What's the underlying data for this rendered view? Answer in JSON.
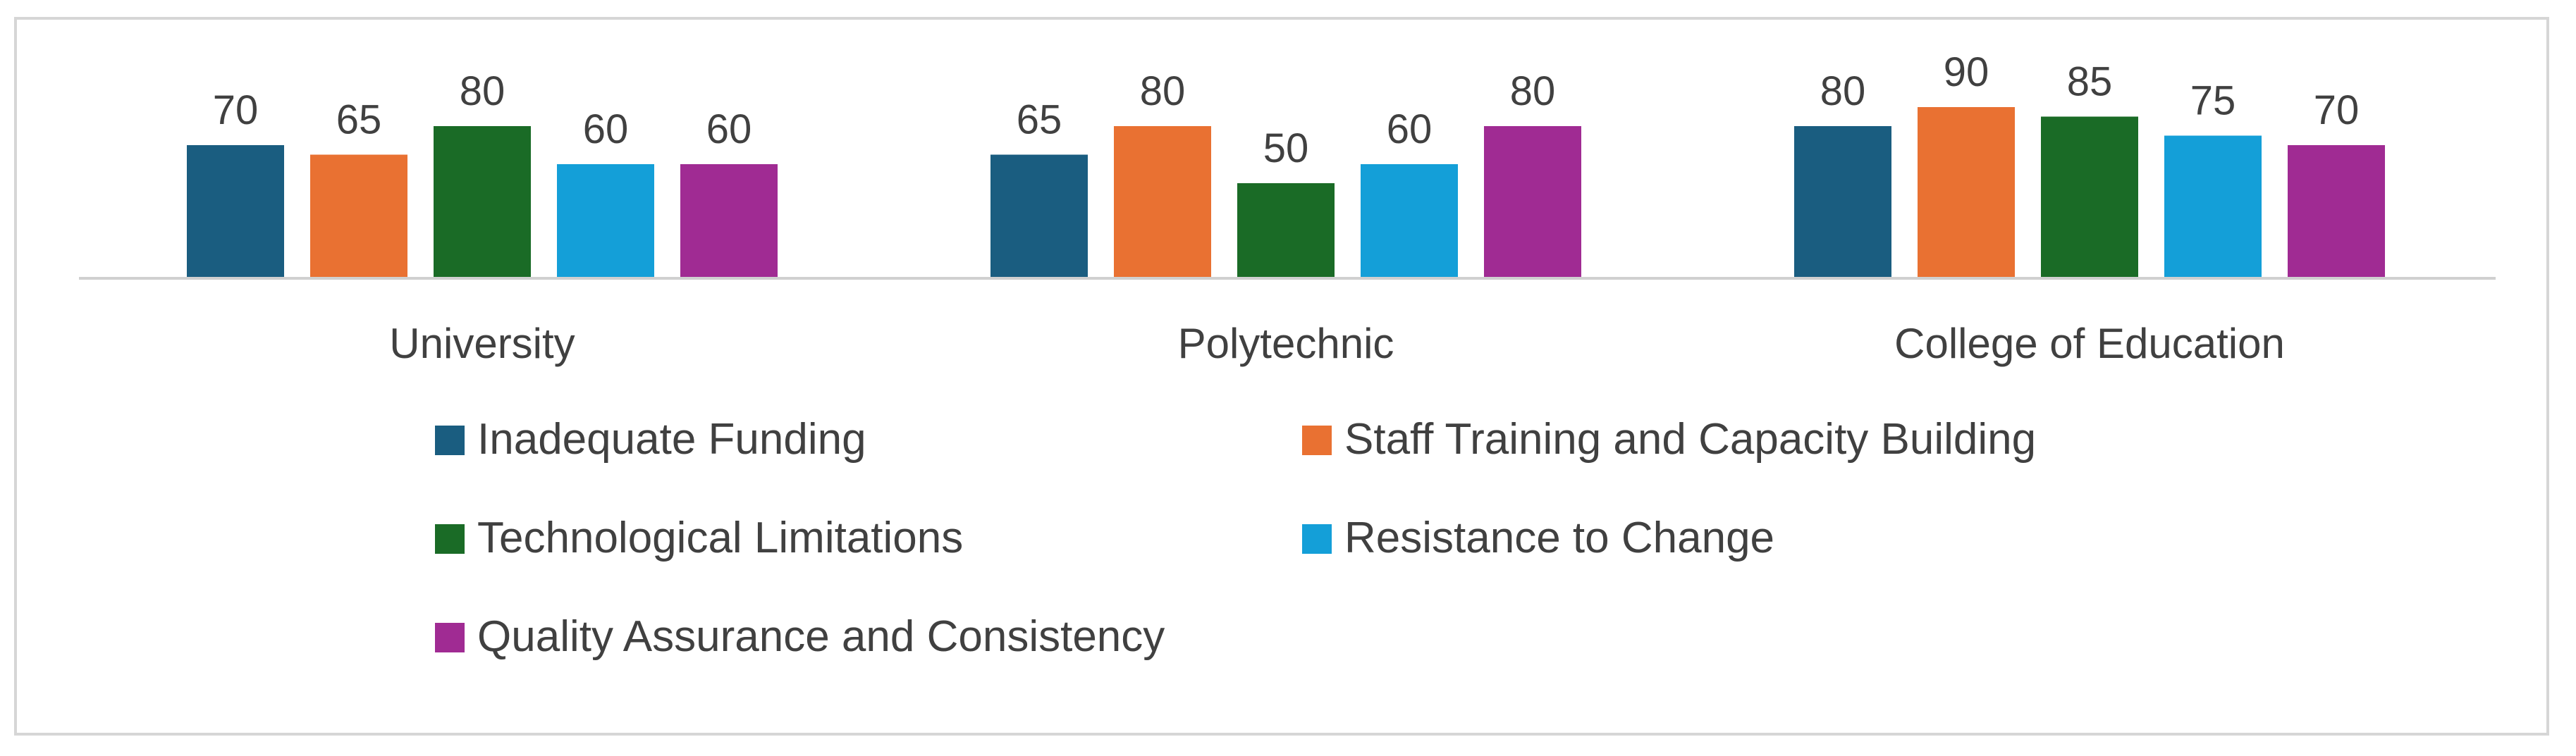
{
  "chart_data": {
    "type": "bar",
    "categories": [
      "University",
      "Polytechnic",
      "College of Education"
    ],
    "series": [
      {
        "name": "Inadequate Funding",
        "color": "#1a5d80",
        "values": [
          70,
          65,
          80
        ]
      },
      {
        "name": "Staff Training and Capacity Building",
        "color": "#e97132",
        "values": [
          65,
          80,
          90
        ]
      },
      {
        "name": "Technological Limitations",
        "color": "#1a6b26",
        "values": [
          80,
          50,
          85
        ]
      },
      {
        "name": "Resistance to Change",
        "color": "#149fd8",
        "values": [
          60,
          60,
          75
        ]
      },
      {
        "name": "Quality Assurance and Consistency",
        "color": "#a02b93",
        "values": [
          60,
          80,
          70
        ]
      }
    ],
    "ylim": [
      0,
      140
    ],
    "data_labels": true,
    "gridlines": false,
    "legend_position": "bottom"
  }
}
